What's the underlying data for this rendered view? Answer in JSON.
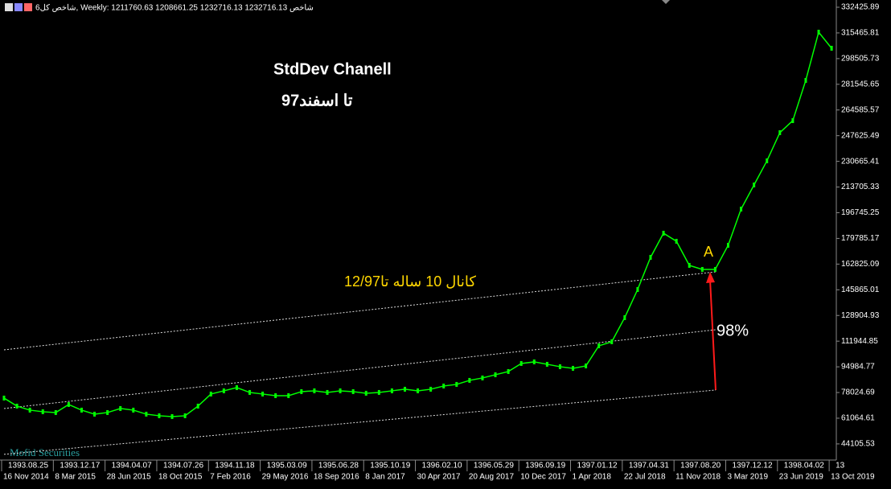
{
  "chart_data": {
    "type": "line",
    "header": "شاخص کل6, Weekly: 1211760.63 1208661.25 1232716.13 1232716.13 شاخص",
    "title": "StdDev Chanell",
    "subtitle": "تا اسفند97",
    "channel_label": "کانال 10 ساله تا12/97",
    "percent_label": "98%",
    "point_label": "A",
    "watermark": "Mofid Securities",
    "color": "#00ff00",
    "categories": [
      "16 Nov 2014",
      null,
      null,
      null,
      "8 Mar 2015",
      null,
      null,
      null,
      "28 Jun 2015",
      null,
      null,
      null,
      "18 Oct 2015",
      null,
      null,
      null,
      "7 Feb 2016",
      null,
      null,
      null,
      "29 May 2016",
      null,
      null,
      null,
      "18 Sep 2016",
      null,
      null,
      null,
      "8 Jan 2017",
      null,
      null,
      null,
      "30 Apr 2017",
      null,
      null,
      null,
      "20 Aug 2017",
      null,
      null,
      null,
      "10 Dec 2017",
      null,
      null,
      null,
      "1 Apr 2018",
      null,
      null,
      null,
      "22 Jul 2018",
      null,
      null,
      null,
      "11 Nov 2018",
      null,
      null,
      null,
      "3 Mar 2019",
      null,
      null,
      null,
      "23 Jun 2019",
      null,
      null,
      null,
      "13 Oct 2019"
    ],
    "persian_categories": [
      "1393.08.25",
      null,
      null,
      null,
      "1393.12.17",
      null,
      null,
      null,
      "1394.04.07",
      null,
      null,
      null,
      "1394.07.26",
      null,
      null,
      null,
      "1394.11.18",
      null,
      null,
      null,
      "1395.03.09",
      null,
      null,
      null,
      "1395.06.28",
      null,
      null,
      null,
      "1395.10.19",
      null,
      null,
      null,
      "1396.02.10",
      null,
      null,
      null,
      "1396.05.29",
      null,
      null,
      null,
      "1396.09.19",
      null,
      null,
      null,
      "1397.01.12",
      null,
      null,
      null,
      "1397.04.31",
      null,
      null,
      null,
      "1397.08.20",
      null,
      null,
      null,
      "1397.12.12",
      null,
      null,
      null,
      "1398.04.02",
      null,
      null,
      null,
      "13"
    ],
    "values": [
      74360,
      69050,
      66395,
      65333,
      64802,
      70112,
      66395,
      63740,
      64802,
      67457,
      66395,
      63740,
      62678,
      62147,
      62678,
      69050,
      77015,
      79139,
      81263,
      78077,
      77015,
      75953,
      75953,
      78608,
      79139,
      78077,
      79139,
      78608,
      77546,
      78077,
      79139,
      80201,
      79139,
      80201,
      82325,
      83387,
      86042,
      87635,
      89759,
      91883,
      97193,
      98255,
      96662,
      95069,
      94007,
      95600,
      108875,
      111530,
      127460,
      146045,
      167285,
      183215,
      177905,
      161975,
      159320,
      159320,
      175250,
      199145,
      215075,
      231005,
      249590,
      257555,
      284105,
      315965,
      305345
    ],
    "channel_lines": [
      {
        "start": 106200,
        "end": 157700
      },
      {
        "start": 67460,
        "end": 119500
      },
      {
        "start": 37190,
        "end": 79670
      }
    ],
    "ylim": [
      34500,
      337200
    ],
    "yticks": [
      44105.53,
      61064.61,
      78024.69,
      94984.77,
      111944.85,
      128904.93,
      145865.01,
      162825.09,
      179785.17,
      196745.25,
      213705.33,
      230665.41,
      247625.49,
      264585.57,
      281545.65,
      298505.73,
      315465.81,
      332425.89
    ]
  }
}
